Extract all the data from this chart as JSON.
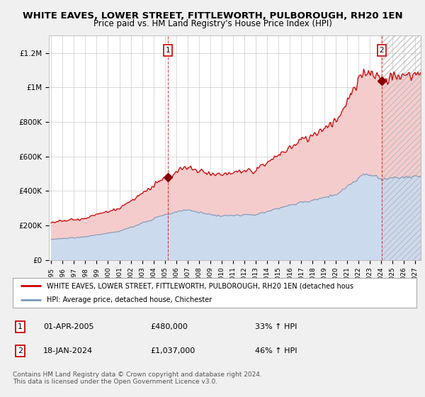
{
  "title1": "WHITE EAVES, LOWER STREET, FITTLEWORTH, PULBOROUGH, RH20 1EN",
  "title2": "Price paid vs. HM Land Registry's House Price Index (HPI)",
  "legend_label1": "WHITE EAVES, LOWER STREET, FITTLEWORTH, PULBOROUGH, RH20 1EN (detached hous",
  "legend_label2": "HPI: Average price, detached house, Chichester",
  "annotation1_date": "01-APR-2005",
  "annotation1_price": "£480,000",
  "annotation1_hpi": "33% ↑ HPI",
  "annotation2_date": "18-JAN-2024",
  "annotation2_price": "£1,037,000",
  "annotation2_hpi": "46% ↑ HPI",
  "footnote": "Contains HM Land Registry data © Crown copyright and database right 2024.\nThis data is licensed under the Open Government Licence v3.0.",
  "red_color": "#cc0000",
  "blue_color": "#7799bb",
  "fill_blue_color": "#ccdaee",
  "fill_red_color": "#f5cccc",
  "hatch_color": "#aaaaaa",
  "background_color": "#f0f0f0",
  "plot_bg_color": "#ffffff",
  "grid_color": "#cccccc",
  "ylim": [
    0,
    1300000
  ],
  "yticks": [
    0,
    200000,
    400000,
    600000,
    800000,
    1000000,
    1200000
  ],
  "xlim_start": 1994.8,
  "xlim_end": 2027.5,
  "sale1_x": 2005.25,
  "sale1_y": 480000,
  "sale2_x": 2024.05,
  "sale2_y": 1037000,
  "future_start": 2024.08
}
